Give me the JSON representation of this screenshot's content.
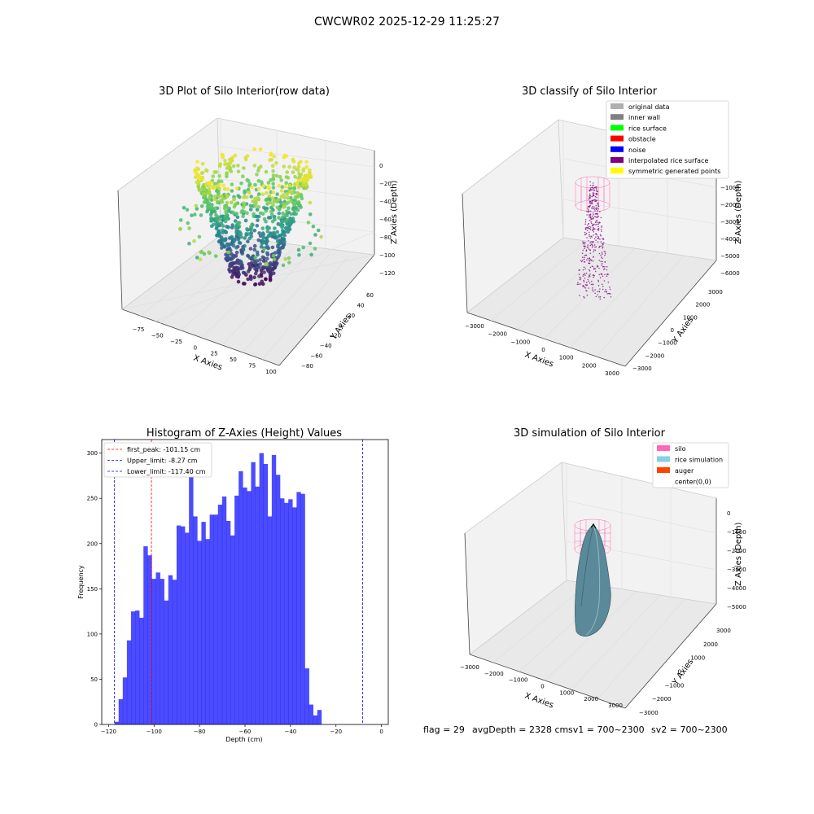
{
  "suptitle": "CWCWR02 2025-12-29 11:25:27",
  "footer": {
    "flag": "flag = 29",
    "avg": "avgDepth = 2328 cm",
    "sv1": "sv1 = 700~2300",
    "sv2": "sv2 = 700~2300"
  },
  "panel1": {
    "title": "3D Plot of Silo Interior(row data)",
    "xlabel": "X Axies",
    "ylabel": "Y Axies",
    "zlabel": "Z Axies (Depth)",
    "xticks": [
      "−75",
      "−50",
      "−25",
      "0",
      "25",
      "50",
      "75",
      "100"
    ],
    "yticks": [
      "−80",
      "−60",
      "−40",
      "−20",
      "0",
      "20",
      "40",
      "60"
    ],
    "zticks": [
      "0",
      "−20",
      "−40",
      "−60",
      "−80",
      "−100",
      "−120"
    ],
    "colormap": "viridis"
  },
  "panel2": {
    "title": "3D classify of Silo Interior",
    "xlabel": "X Axies",
    "ylabel": "Y Axies",
    "zlabel": "Z Axies (Depth)",
    "xticks": [
      "−3000",
      "−2000",
      "−1000",
      "0",
      "1000",
      "2000",
      "3000"
    ],
    "yticks": [
      "−3000",
      "−2000",
      "−1000",
      "0",
      "1000",
      "2000",
      "3000"
    ],
    "zticks": [
      "0",
      "−1000",
      "−2000",
      "−3000",
      "−4000",
      "−5000",
      "−6000"
    ],
    "legend": [
      {
        "label": "original data",
        "color": "#b0b0b0"
      },
      {
        "label": "inner wall",
        "color": "#808080"
      },
      {
        "label": "rice surface",
        "color": "#00ff00"
      },
      {
        "label": "obstacle",
        "color": "#ff0000"
      },
      {
        "label": "noise",
        "color": "#0000ff"
      },
      {
        "label": "interpolated rice surface",
        "color": "#800080"
      },
      {
        "label": "symmetric generated points",
        "color": "#ffff00"
      }
    ]
  },
  "panel3": {
    "title": "3D simulation of Silo Interior",
    "xlabel": "X Axies",
    "ylabel": "Y Axies",
    "zlabel": "Z Axies (Depth)",
    "xticks": [
      "−3000",
      "−2000",
      "−1000",
      "0",
      "1000",
      "2000",
      "3000"
    ],
    "yticks": [
      "−3000",
      "−2000",
      "−1000",
      "0",
      "1000",
      "2000",
      "3000"
    ],
    "zticks": [
      "0",
      "−1000",
      "−2000",
      "−3000",
      "−4000",
      "−5000"
    ],
    "legend": [
      {
        "label": "silo",
        "color": "#ff69b4"
      },
      {
        "label": "rice simulation",
        "color": "#87ceeb"
      },
      {
        "label": "auger",
        "color": "#ff4500"
      },
      {
        "label": "center(0,0)",
        "color": "#ffffff"
      }
    ]
  },
  "chart_data": {
    "type": "bar",
    "title": "Histogram of Z-Axies (Height) Values",
    "xlabel": "Depth (cm)",
    "ylabel": "Frequency",
    "xlim": [
      -123,
      3
    ],
    "ylim": [
      0,
      315
    ],
    "xticks": [
      -120,
      -100,
      -80,
      -60,
      -40,
      -20,
      0
    ],
    "yticks": [
      0,
      50,
      100,
      150,
      200,
      250,
      300
    ],
    "bin_start": -117.4,
    "bin_width": 1.82,
    "bar_color": "#0000ff",
    "values": [
      3,
      28,
      52,
      93,
      125,
      126,
      118,
      197,
      187,
      161,
      168,
      161,
      137,
      165,
      160,
      220,
      219,
      212,
      274,
      230,
      203,
      224,
      205,
      232,
      232,
      243,
      252,
      225,
      209,
      253,
      280,
      262,
      258,
      290,
      263,
      300,
      288,
      230,
      298,
      276,
      250,
      245,
      249,
      240,
      257,
      255,
      62,
      22,
      10,
      16
    ],
    "vlines": [
      {
        "label": "first_peak: -101.15 cm",
        "x": -101.15,
        "color": "#ff0000"
      },
      {
        "label": "Upper_limit: -8.27 cm",
        "x": -8.27,
        "color": "#0000ff"
      },
      {
        "label": "Lower_limit: -117.40 cm",
        "x": -117.4,
        "color": "#0000ff"
      }
    ]
  }
}
